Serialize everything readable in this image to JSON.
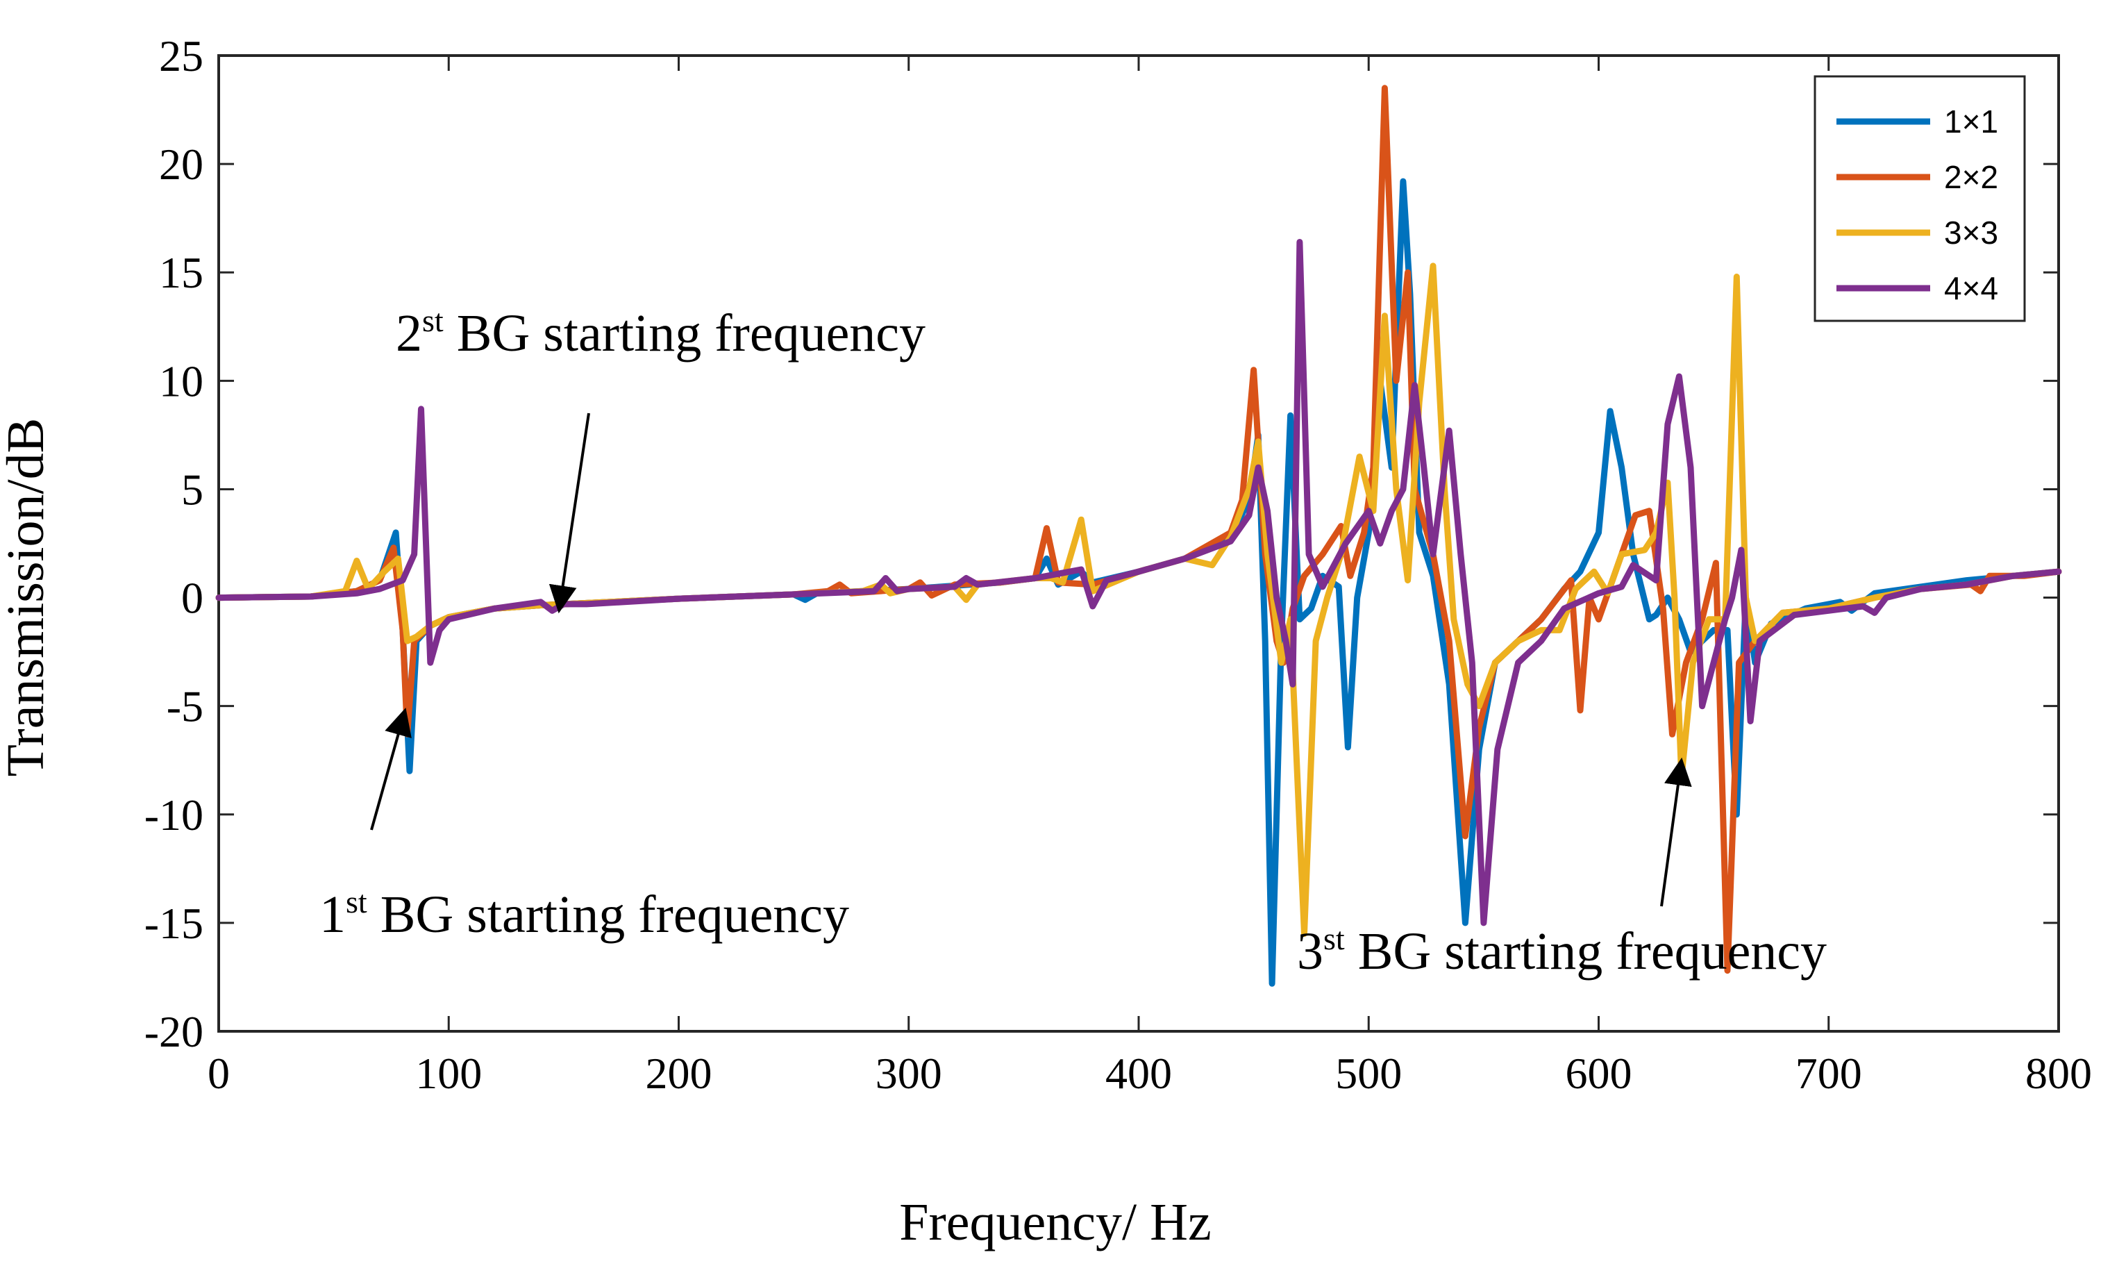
{
  "chart_data": {
    "type": "line",
    "title": "",
    "xlabel": "Frequency/ Hz",
    "ylabel": "Transmission/dB",
    "xlim": [
      0,
      800
    ],
    "ylim": [
      -20,
      25
    ],
    "xticks": [
      0,
      100,
      200,
      300,
      400,
      500,
      600,
      700,
      800
    ],
    "yticks": [
      -20,
      -15,
      -10,
      -5,
      0,
      5,
      10,
      15,
      20,
      25
    ],
    "grid": false,
    "legend_position": "top-right",
    "series": [
      {
        "name": "1×1",
        "color": "#0072BD",
        "points": [
          [
            0,
            0
          ],
          [
            40,
            0.05
          ],
          [
            60,
            0.3
          ],
          [
            70,
            0.8
          ],
          [
            77,
            3.0
          ],
          [
            80,
            -1.5
          ],
          [
            83,
            -8
          ],
          [
            86,
            -2
          ],
          [
            92,
            -1.3
          ],
          [
            100,
            -0.9
          ],
          [
            120,
            -0.5
          ],
          [
            140,
            -0.35
          ],
          [
            160,
            -0.25
          ],
          [
            200,
            -0.05
          ],
          [
            250,
            0.15
          ],
          [
            255,
            -0.1
          ],
          [
            260,
            0.2
          ],
          [
            300,
            0.4
          ],
          [
            340,
            0.7
          ],
          [
            355,
            0.9
          ],
          [
            360,
            1.8
          ],
          [
            365,
            0.6
          ],
          [
            375,
            1.2
          ],
          [
            380,
            0.7
          ],
          [
            400,
            1.2
          ],
          [
            420,
            1.8
          ],
          [
            440,
            2.8
          ],
          [
            448,
            4.5
          ],
          [
            452,
            7.5
          ],
          [
            455,
            -2
          ],
          [
            458,
            -17.8
          ],
          [
            462,
            -2
          ],
          [
            466,
            8.4
          ],
          [
            470,
            -1
          ],
          [
            475,
            -0.5
          ],
          [
            480,
            1
          ],
          [
            487,
            0.5
          ],
          [
            491,
            -6.9
          ],
          [
            495,
            0
          ],
          [
            500,
            3
          ],
          [
            505,
            10
          ],
          [
            510,
            6
          ],
          [
            515,
            19.2
          ],
          [
            518,
            14
          ],
          [
            522,
            3
          ],
          [
            528,
            1
          ],
          [
            535,
            -4
          ],
          [
            542,
            -15
          ],
          [
            548,
            -7
          ],
          [
            555,
            -3
          ],
          [
            565,
            -2
          ],
          [
            575,
            -1
          ],
          [
            585,
            0.4
          ],
          [
            592,
            1.2
          ],
          [
            600,
            3
          ],
          [
            605,
            8.6
          ],
          [
            610,
            6
          ],
          [
            615,
            2
          ],
          [
            622,
            -1
          ],
          [
            625,
            -0.8
          ],
          [
            630,
            0
          ],
          [
            635,
            -1
          ],
          [
            640,
            -2.5
          ],
          [
            650,
            -1.5
          ],
          [
            656,
            -1.5
          ],
          [
            660,
            -10
          ],
          [
            664,
            0
          ],
          [
            668,
            -3
          ],
          [
            675,
            -1.2
          ],
          [
            690,
            -0.5
          ],
          [
            700,
            -0.3
          ],
          [
            705,
            -0.2
          ],
          [
            710,
            -0.6
          ],
          [
            720,
            0.2
          ],
          [
            740,
            0.5
          ],
          [
            760,
            0.8
          ],
          [
            780,
            1.0
          ],
          [
            800,
            1.2
          ]
        ]
      },
      {
        "name": "2×2",
        "color": "#D95319",
        "points": [
          [
            0,
            0
          ],
          [
            40,
            0.05
          ],
          [
            60,
            0.3
          ],
          [
            70,
            0.8
          ],
          [
            76,
            2.3
          ],
          [
            80,
            -1.5
          ],
          [
            82,
            -6.3
          ],
          [
            85,
            -2
          ],
          [
            92,
            -1.3
          ],
          [
            100,
            -0.9
          ],
          [
            120,
            -0.5
          ],
          [
            140,
            -0.35
          ],
          [
            160,
            -0.25
          ],
          [
            200,
            -0.05
          ],
          [
            250,
            0.15
          ],
          [
            265,
            0.3
          ],
          [
            270,
            0.6
          ],
          [
            275,
            0.2
          ],
          [
            300,
            0.4
          ],
          [
            305,
            0.7
          ],
          [
            310,
            0.1
          ],
          [
            320,
            0.6
          ],
          [
            340,
            0.7
          ],
          [
            355,
            0.9
          ],
          [
            360,
            3.2
          ],
          [
            365,
            0.7
          ],
          [
            380,
            0.6
          ],
          [
            400,
            1.2
          ],
          [
            420,
            1.8
          ],
          [
            440,
            3
          ],
          [
            445,
            4.5
          ],
          [
            450,
            10.5
          ],
          [
            455,
            2
          ],
          [
            460,
            -2
          ],
          [
            463,
            -3
          ],
          [
            467,
            -0.5
          ],
          [
            472,
            1
          ],
          [
            480,
            2
          ],
          [
            488,
            3.3
          ],
          [
            492,
            1
          ],
          [
            498,
            3
          ],
          [
            502,
            6
          ],
          [
            507,
            23.5
          ],
          [
            512,
            10
          ],
          [
            517,
            15
          ],
          [
            520,
            5
          ],
          [
            528,
            2
          ],
          [
            535,
            -2
          ],
          [
            542,
            -11
          ],
          [
            548,
            -6
          ],
          [
            555,
            -3
          ],
          [
            565,
            -2
          ],
          [
            575,
            -1
          ],
          [
            588,
            0.8
          ],
          [
            592,
            -5.2
          ],
          [
            596,
            0
          ],
          [
            600,
            -1
          ],
          [
            610,
            2
          ],
          [
            616,
            3.8
          ],
          [
            622,
            4
          ],
          [
            628,
            -0.5
          ],
          [
            632,
            -6.3
          ],
          [
            638,
            -3
          ],
          [
            645,
            -1
          ],
          [
            651,
            1.6
          ],
          [
            656,
            -17.2
          ],
          [
            661,
            -3
          ],
          [
            668,
            -2
          ],
          [
            680,
            -0.7
          ],
          [
            700,
            -0.5
          ],
          [
            720,
            0
          ],
          [
            740,
            0.4
          ],
          [
            762,
            0.6
          ],
          [
            766,
            0.3
          ],
          [
            770,
            1.0
          ],
          [
            785,
            1.0
          ],
          [
            800,
            1.2
          ]
        ]
      },
      {
        "name": "3×3",
        "color": "#EDB120",
        "points": [
          [
            0,
            0
          ],
          [
            40,
            0.05
          ],
          [
            55,
            0.3
          ],
          [
            60,
            1.7
          ],
          [
            65,
            0.4
          ],
          [
            72,
            1.2
          ],
          [
            78,
            1.8
          ],
          [
            82,
            -2
          ],
          [
            86,
            -1.8
          ],
          [
            92,
            -1.3
          ],
          [
            100,
            -0.9
          ],
          [
            120,
            -0.5
          ],
          [
            140,
            -0.35
          ],
          [
            160,
            -0.25
          ],
          [
            200,
            -0.05
          ],
          [
            250,
            0.15
          ],
          [
            280,
            0.3
          ],
          [
            288,
            0.6
          ],
          [
            292,
            0.2
          ],
          [
            300,
            0.4
          ],
          [
            320,
            0.5
          ],
          [
            325,
            -0.1
          ],
          [
            330,
            0.6
          ],
          [
            355,
            0.9
          ],
          [
            362,
            0.9
          ],
          [
            367,
            0.7
          ],
          [
            375,
            3.6
          ],
          [
            380,
            0.3
          ],
          [
            400,
            1.2
          ],
          [
            420,
            1.8
          ],
          [
            432,
            1.5
          ],
          [
            440,
            2.8
          ],
          [
            448,
            5
          ],
          [
            452,
            7.2
          ],
          [
            456,
            2
          ],
          [
            462,
            -3
          ],
          [
            466,
            -1
          ],
          [
            472,
            -15.5
          ],
          [
            477,
            -2
          ],
          [
            482,
            0
          ],
          [
            488,
            2
          ],
          [
            496,
            6.5
          ],
          [
            502,
            4
          ],
          [
            507,
            13
          ],
          [
            512,
            5
          ],
          [
            517,
            0.8
          ],
          [
            522,
            9
          ],
          [
            528,
            15.3
          ],
          [
            533,
            5
          ],
          [
            537,
            -1
          ],
          [
            543,
            -4
          ],
          [
            548,
            -5
          ],
          [
            555,
            -3
          ],
          [
            565,
            -2
          ],
          [
            575,
            -1.5
          ],
          [
            583,
            -1.5
          ],
          [
            590,
            0.4
          ],
          [
            598,
            1.2
          ],
          [
            604,
            0.2
          ],
          [
            610,
            2
          ],
          [
            620,
            2.2
          ],
          [
            625,
            3
          ],
          [
            630,
            5.3
          ],
          [
            633,
            0
          ],
          [
            636,
            -8.3
          ],
          [
            641,
            -3
          ],
          [
            648,
            -1
          ],
          [
            655,
            -1
          ],
          [
            660,
            14.8
          ],
          [
            664,
            0
          ],
          [
            668,
            -2
          ],
          [
            680,
            -0.7
          ],
          [
            700,
            -0.5
          ],
          [
            720,
            0
          ],
          [
            740,
            0.4
          ],
          [
            760,
            0.6
          ],
          [
            780,
            1.0
          ],
          [
            800,
            1.2
          ]
        ]
      },
      {
        "name": "4×4",
        "color": "#7E2F8E",
        "points": [
          [
            0,
            0
          ],
          [
            40,
            0.05
          ],
          [
            60,
            0.2
          ],
          [
            70,
            0.4
          ],
          [
            80,
            0.8
          ],
          [
            85,
            2
          ],
          [
            88,
            8.7
          ],
          [
            92,
            -3
          ],
          [
            96,
            -1.5
          ],
          [
            100,
            -1
          ],
          [
            120,
            -0.5
          ],
          [
            140,
            -0.2
          ],
          [
            145,
            -0.6
          ],
          [
            150,
            -0.3
          ],
          [
            160,
            -0.3
          ],
          [
            200,
            -0.05
          ],
          [
            250,
            0.15
          ],
          [
            285,
            0.3
          ],
          [
            290,
            0.9
          ],
          [
            295,
            0.3
          ],
          [
            300,
            0.4
          ],
          [
            320,
            0.5
          ],
          [
            325,
            0.9
          ],
          [
            330,
            0.6
          ],
          [
            355,
            0.9
          ],
          [
            375,
            1.3
          ],
          [
            380,
            -0.4
          ],
          [
            386,
            0.8
          ],
          [
            400,
            1.2
          ],
          [
            420,
            1.8
          ],
          [
            440,
            2.6
          ],
          [
            448,
            3.8
          ],
          [
            452,
            6
          ],
          [
            456,
            4
          ],
          [
            460,
            0
          ],
          [
            464,
            -2
          ],
          [
            467,
            -4
          ],
          [
            470,
            16.4
          ],
          [
            474,
            2
          ],
          [
            480,
            0.5
          ],
          [
            490,
            2.5
          ],
          [
            500,
            4
          ],
          [
            505,
            2.5
          ],
          [
            510,
            4
          ],
          [
            515,
            5
          ],
          [
            520,
            9.8
          ],
          [
            524,
            6
          ],
          [
            528,
            2
          ],
          [
            535,
            7.7
          ],
          [
            540,
            2
          ],
          [
            545,
            -3
          ],
          [
            550,
            -15
          ],
          [
            556,
            -7
          ],
          [
            565,
            -3
          ],
          [
            575,
            -2
          ],
          [
            585,
            -0.5
          ],
          [
            600,
            0.2
          ],
          [
            610,
            0.5
          ],
          [
            615,
            1.5
          ],
          [
            625,
            0.8
          ],
          [
            630,
            8
          ],
          [
            635,
            10.2
          ],
          [
            640,
            6
          ],
          [
            645,
            -5
          ],
          [
            650,
            -3
          ],
          [
            655,
            -1
          ],
          [
            658,
            0
          ],
          [
            662,
            2.2
          ],
          [
            666,
            -5.7
          ],
          [
            670,
            -2
          ],
          [
            685,
            -0.8
          ],
          [
            700,
            -0.6
          ],
          [
            715,
            -0.4
          ],
          [
            720,
            -0.7
          ],
          [
            725,
            0
          ],
          [
            740,
            0.4
          ],
          [
            760,
            0.6
          ],
          [
            780,
            1.0
          ],
          [
            800,
            1.2
          ]
        ]
      }
    ],
    "annotations": [
      {
        "label": "2st BG starting frequency",
        "main": "2",
        "sup": "st",
        "rest": " BG starting frequency",
        "target": [
          148,
          -0.6
        ]
      },
      {
        "label": "1st BG starting frequency",
        "main": "1",
        "sup": "st",
        "rest": " BG starting frequency",
        "target": [
          81,
          -5.2
        ]
      },
      {
        "label": "3st BG starting frequency",
        "main": "3",
        "sup": "st",
        "rest": " BG starting frequency",
        "target": [
          636,
          -7.5
        ]
      }
    ]
  }
}
